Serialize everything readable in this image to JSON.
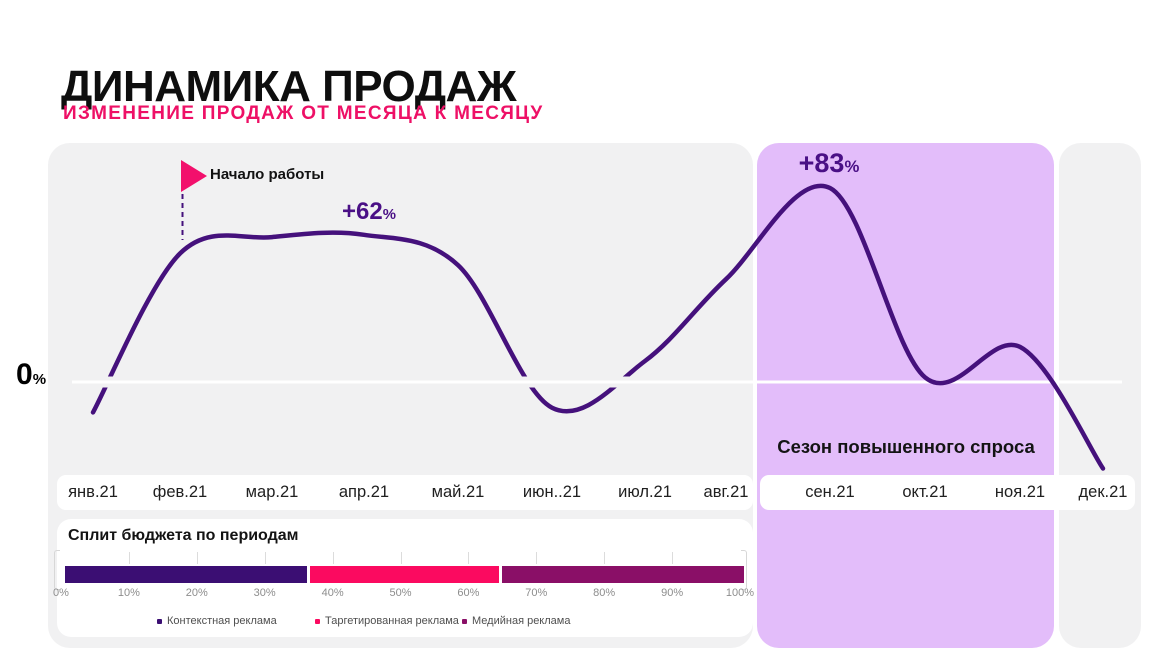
{
  "header": {
    "title": "ДИНАМИКА ПРОДАЖ",
    "subtitle": "ИЗМЕНЕНИЕ ПРОДАЖ ОТ МЕСЯЦА К МЕСЯЦУ"
  },
  "colors": {
    "accent_pink": "#ee1066",
    "curve_purple": "#45117c",
    "season_highlight_bg": "#e3bdfa",
    "panel_gray": "#f1f1f2",
    "budget_segment_1": "#3b0e73",
    "budget_segment_2": "#fb0a60",
    "budget_segment_3": "#8a0f67"
  },
  "chart_data": [
    {
      "type": "line",
      "title": "ДИНАМИКА ПРОДАЖ",
      "subtitle": "ИЗМЕНЕНИЕ ПРОДАЖ ОТ МЕСЯЦА К МЕСЯЦУ",
      "x": [
        "янв.21",
        "фев.21",
        "мар.21",
        "апр.21",
        "май.21",
        "июн..21",
        "июл.21",
        "авг.21",
        "сен.21",
        "окт.21",
        "ноя.21",
        "дек.21"
      ],
      "y_pct": [
        -13,
        55,
        62,
        63,
        50,
        -11,
        9,
        44,
        83,
        2,
        15,
        -37
      ],
      "baseline_value": 0,
      "baseline_label": "0%",
      "grid": false,
      "annotations": [
        {
          "kind": "growth",
          "text": "+62%",
          "near_x": "апр.21"
        },
        {
          "kind": "growth",
          "text": "+83%",
          "near_x": "сен.21"
        },
        {
          "kind": "flag",
          "text": "Начало работы",
          "near_x": "фев.21"
        },
        {
          "kind": "highlight-region",
          "text": "Сезон повышенного спроса",
          "x_from": "сен.21",
          "x_to": "ноя.21"
        }
      ],
      "line_color": "#45117c",
      "highlight_color": "#e3bdfa"
    },
    {
      "type": "bar",
      "variant": "stacked-horizontal",
      "title": "Сплит бюджета по периодам",
      "series": [
        {
          "name": "Контекстная реклама",
          "value_pct": 36,
          "color": "#3b0e73"
        },
        {
          "name": "Таргетированная реклама",
          "value_pct": 28,
          "color": "#fb0a60"
        },
        {
          "name": "Медийная реклама",
          "value_pct": 36,
          "color": "#8a0f67"
        }
      ],
      "ticks": [
        "0%",
        "10%",
        "20%",
        "30%",
        "40%",
        "50%",
        "60%",
        "70%",
        "80%",
        "90%",
        "100%"
      ],
      "xlim": [
        0,
        100
      ],
      "legend_position": "bottom"
    }
  ]
}
